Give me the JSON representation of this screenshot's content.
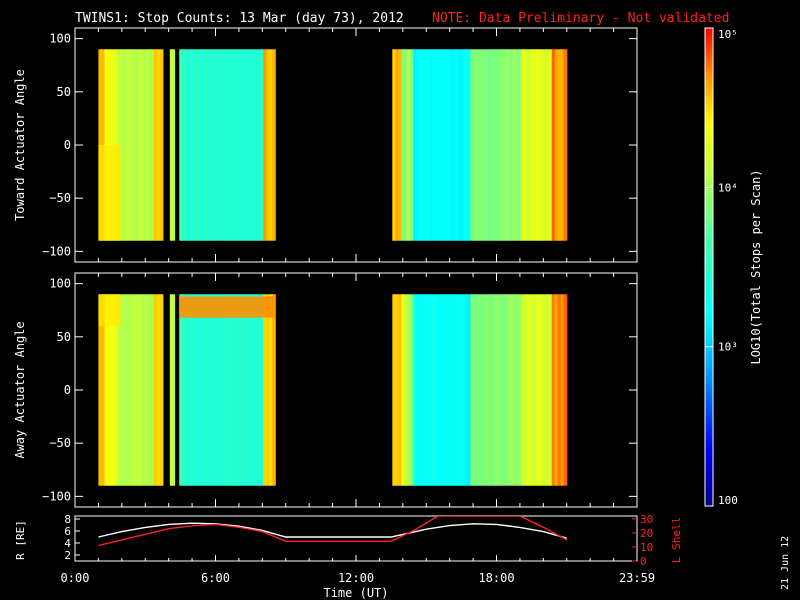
{
  "header": {
    "title": "TWINS1: Stop Counts: 13 Mar (day  73), 2012",
    "note": "NOTE: Data Preliminary - Not validated"
  },
  "stamp": "21 Jun 12",
  "colorbar": {
    "label": "LOG10(Total Stops per Scan)",
    "ticks": [
      {
        "value": 100,
        "label": "100"
      },
      {
        "value": 1000,
        "label": "10³"
      },
      {
        "value": 10000,
        "label": "10⁴"
      },
      {
        "value": 100000,
        "label": "10⁵"
      }
    ],
    "range": [
      100,
      100000
    ],
    "scale": "log"
  },
  "colors": {
    "background": "#000000",
    "axes": "#ffffff",
    "note": "#ff2020",
    "r_line": "#ffffff",
    "l_line": "#ff2020"
  },
  "chart_data": [
    {
      "type": "heatmap",
      "panel": "toward",
      "ylabel": "Toward Actuator Angle",
      "xlim": [
        0,
        24
      ],
      "ylim": [
        -110,
        110
      ],
      "yticks": [
        100,
        50,
        0,
        -50,
        -100
      ],
      "ytick_labels": [
        "100",
        "50",
        "0",
        "−50",
        "−100"
      ],
      "data_extent_y": [
        -90,
        90
      ],
      "segments": [
        {
          "start": 1.0,
          "end": 3.75,
          "profile": "early"
        },
        {
          "start": 4.05,
          "end": 4.25,
          "profile": "sliver"
        },
        {
          "start": 4.45,
          "end": 8.55,
          "profile": "mid"
        },
        {
          "start": 13.55,
          "end": 21.0,
          "profile": "late"
        }
      ]
    },
    {
      "type": "heatmap",
      "panel": "away",
      "ylabel": "Away Actuator Angle",
      "xlim": [
        0,
        24
      ],
      "ylim": [
        -110,
        110
      ],
      "yticks": [
        100,
        50,
        0,
        -50,
        -100
      ],
      "ytick_labels": [
        "100",
        "50",
        "0",
        "−50",
        "−100"
      ],
      "data_extent_y": [
        -90,
        90
      ],
      "segments": [
        {
          "start": 1.0,
          "end": 3.75,
          "profile": "early"
        },
        {
          "start": 4.05,
          "end": 4.25,
          "profile": "sliver"
        },
        {
          "start": 4.45,
          "end": 8.55,
          "profile": "mid"
        },
        {
          "start": 13.55,
          "end": 21.0,
          "profile": "late"
        }
      ]
    },
    {
      "type": "line",
      "panel": "orbit",
      "xlabel": "Time (UT)",
      "xticks": [
        0,
        6,
        12,
        18,
        24
      ],
      "xtick_labels": [
        "0:00",
        "6:00",
        "12:00",
        "18:00",
        "23:59"
      ],
      "xlim": [
        0,
        24
      ],
      "ylabel_left": "R [RE]",
      "ylim_left": [
        1,
        8.5
      ],
      "yticks_left": [
        2,
        4,
        6,
        8
      ],
      "ytick_labels_left": [
        "2",
        "4",
        "6",
        "8"
      ],
      "ylabel_right": "L Shell",
      "ylim_right": [
        0,
        32
      ],
      "yticks_right": [
        0,
        10,
        20,
        30
      ],
      "ytick_labels_right": [
        "0",
        "10",
        "20",
        "30"
      ],
      "series": [
        {
          "axis": "left",
          "x": [
            1.0,
            2.0,
            3.0,
            4.0,
            5.0,
            6.0,
            7.0,
            8.0,
            9.0,
            10.0,
            11.0,
            12.0,
            13.0,
            13.5,
            15.0,
            16.0,
            17.0,
            18.0,
            19.0,
            20.0,
            21.0
          ],
          "values": [
            5.0,
            5.9,
            6.6,
            7.1,
            7.3,
            7.2,
            6.8,
            6.1,
            5.0,
            5.0,
            5.0,
            5.0,
            5.0,
            5.0,
            6.3,
            6.9,
            7.2,
            7.1,
            6.6,
            5.9,
            4.8
          ]
        },
        {
          "axis": "right",
          "x": [
            1.0,
            2.0,
            3.0,
            4.0,
            5.0,
            6.0,
            7.0,
            8.0,
            9.0,
            10.0,
            11.0,
            12.0,
            13.0,
            13.5,
            14.5,
            15.5,
            19.0,
            20.0,
            21.0
          ],
          "values": [
            11,
            15,
            19,
            23,
            25,
            26,
            24,
            21,
            14,
            14,
            14,
            14,
            14,
            14,
            22,
            32,
            32,
            24,
            15
          ]
        }
      ]
    }
  ]
}
